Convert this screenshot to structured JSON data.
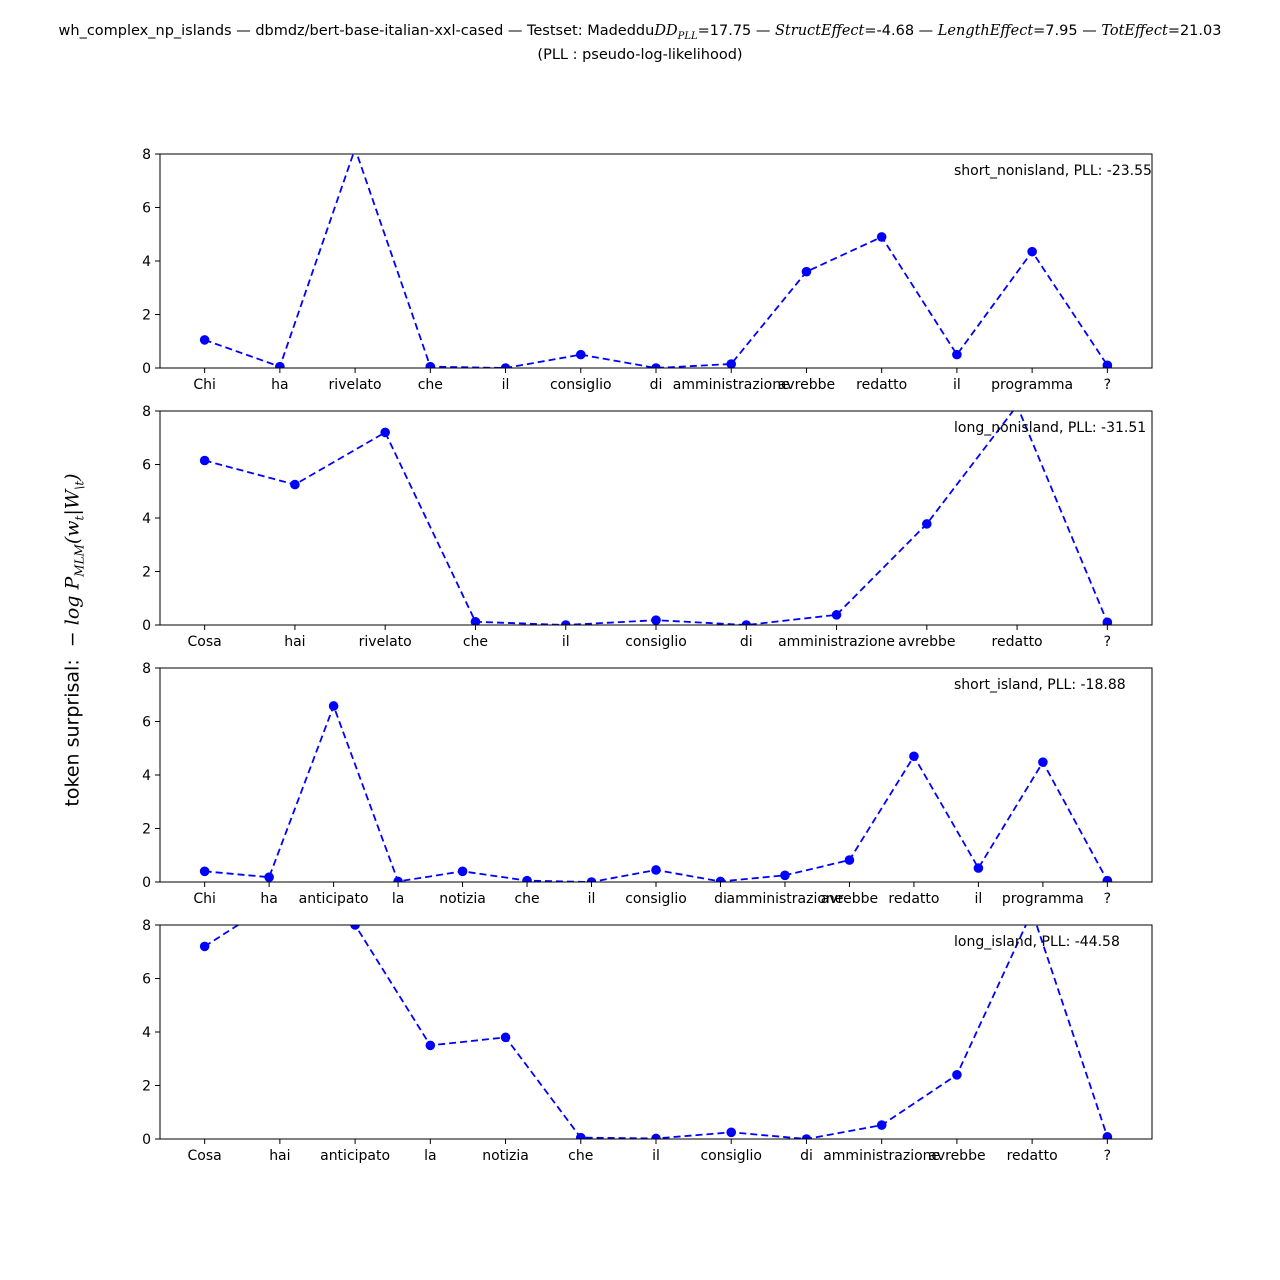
{
  "title": {
    "prefix": "wh_complex_np_islands — dbmdz/bert-base-italian-xxl-cased — Testset:  Madeddu",
    "dd_label": "DD",
    "dd_sub": "PLL",
    "dd_value": "=17.75",
    "struct_label": "StructEffect",
    "struct_value": "=-4.68",
    "length_label": "LengthEffect",
    "length_value": "=7.95",
    "tot_label": "TotEffect",
    "tot_value": "=21.03",
    "sep": " — ",
    "line2": "(PLL : pseudo-log-likelihood)"
  },
  "ylabel": {
    "text": "token surprisal:",
    "math": "− log P",
    "math_sub": "MLM",
    "math_rest": "(w",
    "math_rest_sub": "t",
    "math_end": "|W",
    "math_end_sub": "\\t",
    "math_close": ")"
  },
  "colors": {
    "series": "#0000ff",
    "axis": "#000000"
  },
  "chart_data": [
    {
      "type": "line",
      "label": "short_nonisland, PLL: -23.55",
      "categories": [
        "Chi",
        "ha",
        "rivelato",
        "che",
        "il",
        "consiglio",
        "di",
        "amministrazione",
        "avrebbe",
        "redatto",
        "il",
        "programma",
        "?"
      ],
      "values": [
        1.05,
        0.05,
        8.2,
        0.05,
        0.0,
        0.5,
        0.0,
        0.15,
        3.6,
        4.9,
        0.5,
        4.35,
        0.1
      ],
      "ylim": [
        0,
        8
      ],
      "yticks": [
        0,
        2,
        4,
        6,
        8
      ],
      "line_style": "dashed",
      "marker": "circle"
    },
    {
      "type": "line",
      "label": "long_nonisland, PLL: -31.51",
      "categories": [
        "Cosa",
        "hai",
        "rivelato",
        "che",
        "il",
        "consiglio",
        "di",
        "amministrazione",
        "avrebbe",
        "redatto",
        "?"
      ],
      "values": [
        6.15,
        5.25,
        7.2,
        0.12,
        0.0,
        0.18,
        0.0,
        0.38,
        3.78,
        8.2,
        0.1
      ],
      "ylim": [
        0,
        8
      ],
      "yticks": [
        0,
        2,
        4,
        6,
        8
      ],
      "line_style": "dashed",
      "marker": "circle"
    },
    {
      "type": "line",
      "label": "short_island, PLL: -18.88",
      "categories": [
        "Chi",
        "ha",
        "anticipato",
        "la",
        "notizia",
        "che",
        "il",
        "consiglio",
        "di",
        "amministrazione",
        "avrebbe",
        "redatto",
        "il",
        "programma",
        "?"
      ],
      "values": [
        0.4,
        0.18,
        6.58,
        0.02,
        0.4,
        0.05,
        0.0,
        0.45,
        0.02,
        0.25,
        0.82,
        4.7,
        0.52,
        4.48,
        0.05
      ],
      "ylim": [
        0,
        8
      ],
      "yticks": [
        0,
        2,
        4,
        6,
        8
      ],
      "line_style": "dashed",
      "marker": "circle"
    },
    {
      "type": "line",
      "label": "long_island, PLL: -44.58",
      "categories": [
        "Cosa",
        "hai",
        "anticipato",
        "la",
        "notizia",
        "che",
        "il",
        "consiglio",
        "di",
        "amministrazione",
        "avrebbe",
        "redatto",
        "?"
      ],
      "values": [
        7.2,
        9.0,
        8.0,
        3.5,
        3.8,
        0.05,
        0.02,
        0.25,
        0.0,
        0.52,
        2.4,
        8.5,
        0.08
      ],
      "ylim": [
        0,
        8
      ],
      "yticks": [
        0,
        2,
        4,
        6,
        8
      ],
      "line_style": "dashed",
      "marker": "circle"
    }
  ]
}
